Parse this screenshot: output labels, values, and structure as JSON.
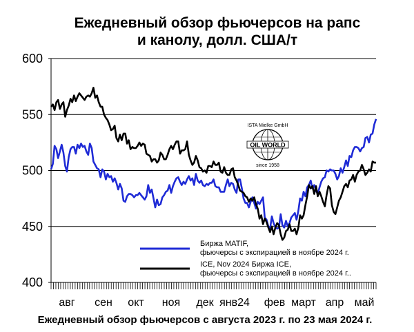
{
  "chart_data": {
    "type": "line",
    "title_line1": "Ежедневный обзор фьючерсов на рапс",
    "title_line2": "и канолу, долл. США/т",
    "footer": "Ежедневный обзор фьючерсов с августа 2023 г. по 23 мая 2024 г.",
    "ylim": [
      400,
      600
    ],
    "yticks": [
      "600",
      "550",
      "500",
      "450",
      "400"
    ],
    "ytick_values": [
      600,
      550,
      500,
      450,
      400
    ],
    "months": [
      "авг",
      "сен",
      "окт",
      "ноя",
      "дек",
      "янв24",
      "фев",
      "март",
      "апр",
      "май"
    ],
    "grid": true,
    "legend_position": "bottom-right",
    "logo": {
      "top": "ISTA Mielke GmbH",
      "middle": "OIL WORLD",
      "bottom": "since 1958"
    },
    "series": [
      {
        "name": "Биржа MATIF, фьючерсы с экспирацией в ноябре 2024 г.",
        "legend_line1": "Биржа MATIF,",
        "legend_line2": "фьючерсы с экспирацией в ноябре 2024 г.",
        "color": "#1f2bd6",
        "values": [
          501,
          506,
          522,
          519,
          511,
          517,
          523,
          516,
          504,
          499,
          512,
          519,
          521,
          521,
          515,
          523,
          520,
          524,
          521,
          522,
          517,
          514,
          524,
          520,
          508,
          505,
          502,
          501,
          494,
          501,
          499,
          492,
          497,
          494,
          495,
          490,
          493,
          489,
          483,
          488,
          484,
          473,
          472,
          477,
          479,
          479,
          478,
          476,
          478,
          478,
          480,
          478,
          476,
          474,
          477,
          487,
          480,
          483,
          475,
          467,
          474,
          469,
          470,
          476,
          478,
          481,
          482,
          487,
          480,
          486,
          490,
          493,
          494,
          490,
          487,
          490,
          488,
          492,
          495,
          491,
          493,
          487,
          497,
          491,
          489,
          491,
          487,
          486,
          488,
          487,
          489,
          489,
          492,
          486,
          485,
          485,
          481,
          481,
          481,
          487,
          492,
          486,
          489,
          488,
          483,
          480,
          492,
          492,
          484,
          475,
          471,
          471,
          467,
          472,
          476,
          471,
          466,
          472,
          470,
          473,
          476,
          458,
          456,
          450,
          448,
          459,
          453,
          449,
          448,
          449,
          461,
          451,
          449,
          455,
          450,
          453,
          458,
          460,
          462,
          456,
          464,
          475,
          473,
          481,
          477,
          485,
          487,
          491,
          484,
          487,
          482,
          479,
          485,
          490,
          493,
          494,
          500,
          499,
          501,
          500,
          500,
          497,
          492,
          495,
          502,
          498,
          503,
          509,
          504,
          513,
          512,
          518,
          521,
          521,
          520,
          517,
          520,
          521,
          529,
          530,
          525,
          532,
          533,
          541,
          546
        ]
      },
      {
        "name": "ICE, Nov 2024 Биржа ICE, фьючерсы с экспирацией в ноябре 2024 г.",
        "legend_line1": "ICE, Nov 2024 Биржа ICE,",
        "legend_line2": "фьючерсы с экспирацией в ноябре 2024 г..",
        "color": "#000000",
        "values": [
          557,
          559,
          554,
          561,
          563,
          555,
          559,
          561,
          548,
          554,
          558,
          564,
          561,
          567,
          562,
          566,
          569,
          567,
          565,
          563,
          566,
          567,
          566,
          569,
          574,
          565,
          567,
          561,
          557,
          557,
          550,
          547,
          545,
          541,
          536,
          537,
          540,
          529,
          526,
          532,
          527,
          533,
          533,
          524,
          527,
          519,
          521,
          520,
          520,
          522,
          525,
          522,
          524,
          523,
          515,
          514,
          513,
          508,
          510,
          510,
          507,
          509,
          516,
          514,
          510,
          510,
          514,
          519,
          522,
          519,
          523,
          526,
          526,
          515,
          518,
          518,
          519,
          526,
          514,
          509,
          505,
          507,
          513,
          509,
          503,
          502,
          499,
          500,
          498,
          504,
          504,
          503,
          508,
          505,
          505,
          507,
          499,
          498,
          503,
          498,
          496,
          496,
          501,
          502,
          494,
          491,
          487,
          482,
          481,
          480,
          477,
          476,
          472,
          475,
          473,
          476,
          470,
          466,
          457,
          460,
          452,
          457,
          454,
          449,
          445,
          450,
          443,
          449,
          453,
          451,
          443,
          438,
          440,
          446,
          447,
          452,
          446,
          446,
          448,
          443,
          449,
          460,
          457,
          460,
          469,
          477,
          487,
          484,
          486,
          479,
          486,
          477,
          481,
          477,
          472,
          468,
          478,
          486,
          484,
          469,
          463,
          461,
          467,
          473,
          476,
          481,
          486,
          488,
          485,
          491,
          492,
          496,
          490,
          496,
          499,
          500,
          505,
          501,
          496,
          498,
          501,
          499,
          508,
          507,
          507
        ]
      }
    ]
  }
}
